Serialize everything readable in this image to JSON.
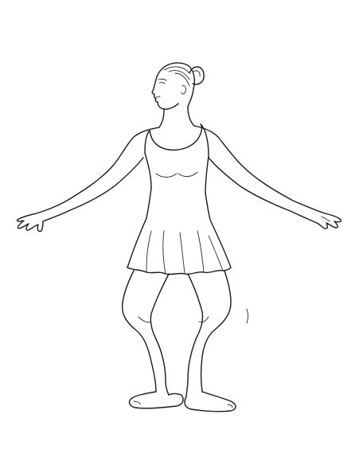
{
  "illustration": {
    "subject": "ballet-dancer-line-drawing",
    "pose": "plie-arms-extended",
    "background_color": "#ffffff",
    "line_color": "#1a1a1a"
  }
}
